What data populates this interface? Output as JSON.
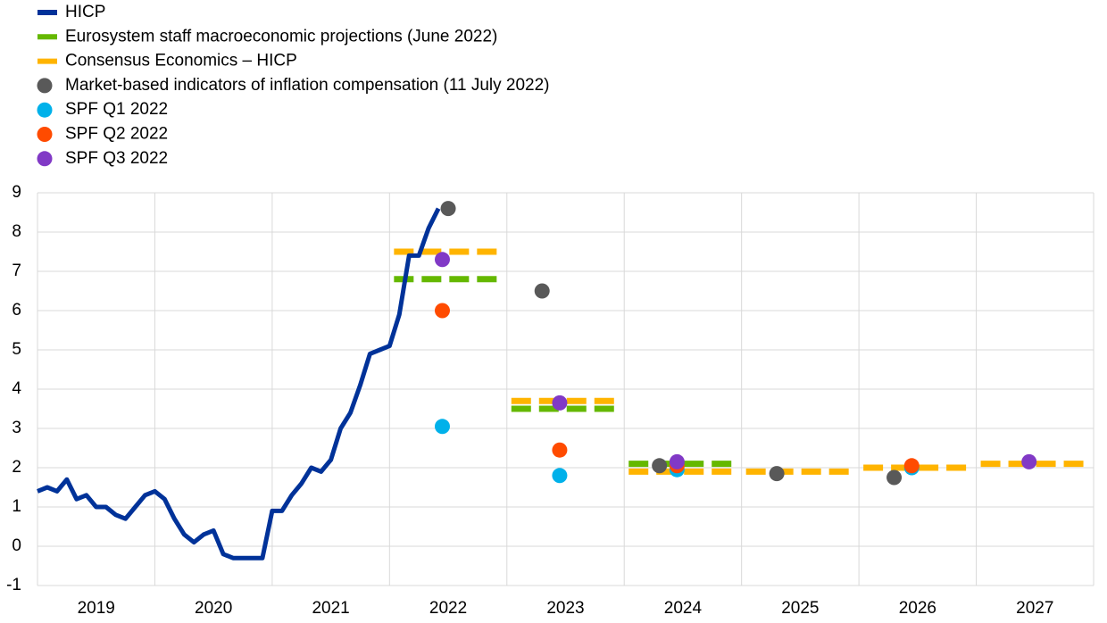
{
  "chart_data": {
    "type": "line",
    "xlim": [
      2019,
      2028
    ],
    "xticks": [
      2019,
      2020,
      2021,
      2022,
      2023,
      2024,
      2025,
      2026,
      2027
    ],
    "ylim": [
      -1,
      9
    ],
    "yticks": [
      -1,
      0,
      1,
      2,
      3,
      4,
      5,
      6,
      7,
      8,
      9
    ],
    "grid": true,
    "series": [
      {
        "name": "HICP",
        "type": "line",
        "color": "#003299",
        "x": [
          2019.0,
          2019.0833,
          2019.1667,
          2019.25,
          2019.3333,
          2019.4167,
          2019.5,
          2019.5833,
          2019.6667,
          2019.75,
          2019.8333,
          2019.9167,
          2020.0,
          2020.0833,
          2020.1667,
          2020.25,
          2020.3333,
          2020.4167,
          2020.5,
          2020.5833,
          2020.6667,
          2020.75,
          2020.8333,
          2020.9167,
          2021.0,
          2021.0833,
          2021.1667,
          2021.25,
          2021.3333,
          2021.4167,
          2021.5,
          2021.5833,
          2021.6667,
          2021.75,
          2021.8333,
          2021.9167,
          2022.0,
          2022.0833,
          2022.1667,
          2022.25,
          2022.3333,
          2022.4167
        ],
        "values": [
          1.4,
          1.5,
          1.4,
          1.7,
          1.2,
          1.3,
          1.0,
          1.0,
          0.8,
          0.7,
          1.0,
          1.3,
          1.4,
          1.2,
          0.7,
          0.3,
          0.1,
          0.3,
          0.4,
          -0.2,
          -0.3,
          -0.3,
          -0.3,
          -0.3,
          0.9,
          0.9,
          1.3,
          1.6,
          2.0,
          1.9,
          2.2,
          3.0,
          3.4,
          4.1,
          4.9,
          5.0,
          5.1,
          5.9,
          7.4,
          7.4,
          8.1,
          8.6
        ]
      },
      {
        "name": "Eurosystem staff macroeconomic projections (June 2022)",
        "type": "step",
        "color": "#65b800",
        "x": [
          2022,
          2023,
          2024
        ],
        "values": [
          6.8,
          3.5,
          2.1
        ]
      },
      {
        "name": "Consensus Economics – HICP",
        "type": "step",
        "color": "#ffb400",
        "x": [
          2022,
          2023,
          2024,
          2025,
          2026,
          2027
        ],
        "values": [
          7.5,
          3.7,
          1.9,
          1.9,
          2.0,
          2.1
        ]
      },
      {
        "name": "Market-based indicators of inflation compensation (11 July 2022)",
        "type": "scatter",
        "color": "#595959",
        "x": [
          2022.5,
          2023.3,
          2024.3,
          2025.3,
          2026.3
        ],
        "values": [
          8.6,
          6.5,
          2.05,
          1.85,
          1.75
        ]
      },
      {
        "name": "SPF Q1 2022",
        "type": "scatter",
        "color": "#00b1ea",
        "x": [
          2022.45,
          2023.45,
          2024.45,
          2026.45
        ],
        "values": [
          3.05,
          1.8,
          1.95,
          2.0
        ]
      },
      {
        "name": "SPF Q2 2022",
        "type": "scatter",
        "color": "#ff4b00",
        "x": [
          2022.45,
          2023.45,
          2024.45,
          2026.45
        ],
        "values": [
          6.0,
          2.45,
          2.05,
          2.05
        ]
      },
      {
        "name": "SPF Q3 2022",
        "type": "scatter",
        "color": "#8139c6",
        "x": [
          2022.45,
          2023.45,
          2024.45,
          2027.45
        ],
        "values": [
          7.3,
          3.65,
          2.15,
          2.15
        ]
      }
    ]
  }
}
